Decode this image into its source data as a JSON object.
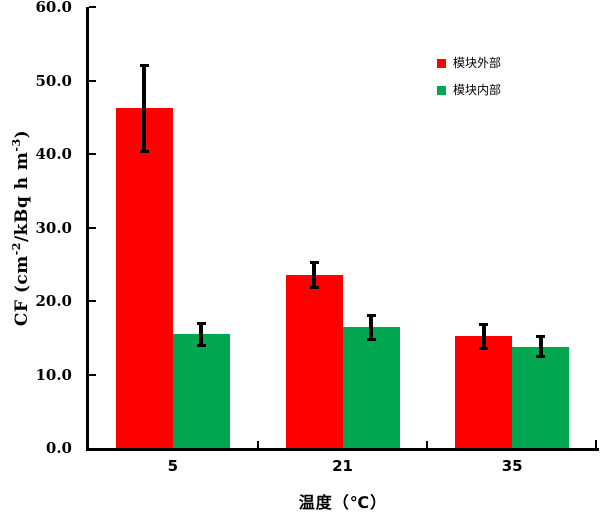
{
  "chart_data": {
    "type": "bar",
    "title": "",
    "categories": [
      "5",
      "21",
      "35"
    ],
    "series": [
      {
        "name": "模块外部",
        "color": "#FF0000",
        "values": [
          46.2,
          23.6,
          15.2
        ],
        "errors": [
          6.0,
          1.9,
          1.8
        ]
      },
      {
        "name": "模块内部",
        "color": "#00A650",
        "values": [
          15.5,
          16.4,
          13.8
        ],
        "errors": [
          1.7,
          1.8,
          1.6
        ]
      }
    ],
    "xlabel": "温度（℃）",
    "ylabel": "CF (cm⁻²/kBq h m⁻³)",
    "ylabel_parts": {
      "pre": "CF (cm",
      "sup1": "-2",
      "mid": "/kBq h m",
      "sup2": "-3",
      "post": ")"
    },
    "ylim": [
      0,
      60
    ],
    "ytick_step": 10,
    "ytick_labels": [
      "0.0",
      "10.0",
      "20.0",
      "30.0",
      "40.0",
      "50.0",
      "60.0"
    ],
    "grid": false,
    "legend_position": "top-right-inside",
    "axis_color": "#000000",
    "error_bar_color": "#000000",
    "background": "#FFFFFF"
  }
}
